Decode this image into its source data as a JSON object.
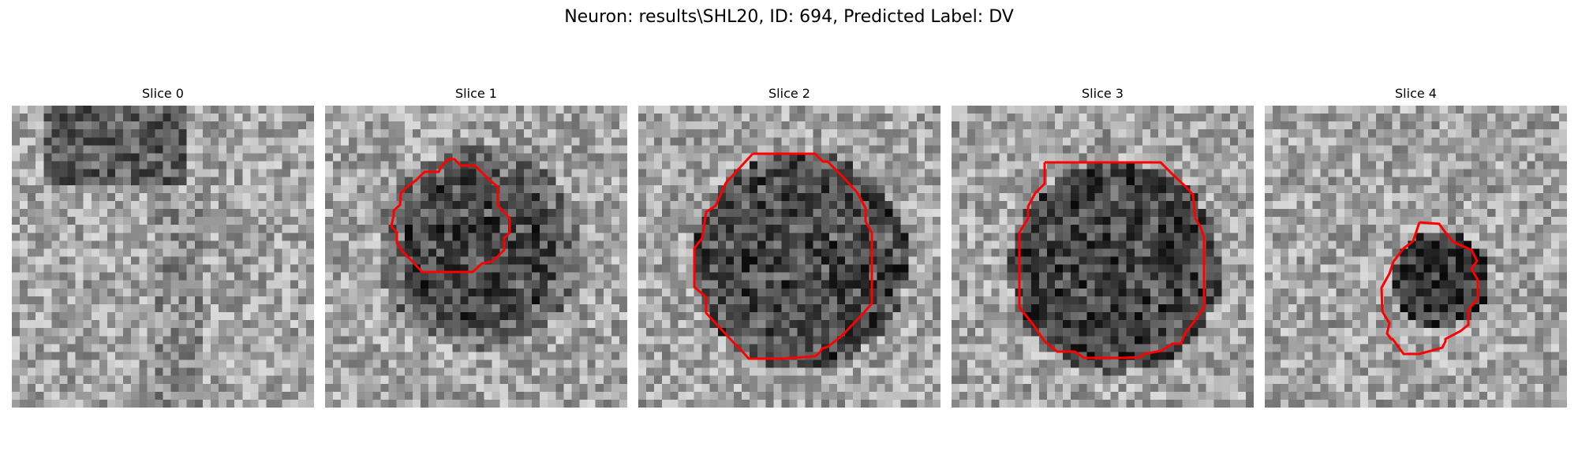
{
  "figure": {
    "title": "Neuron: results\\SHL20, ID: 694, Predicted Label: DV"
  },
  "colors": {
    "contour": "#ff0000",
    "background": "#ffffff"
  },
  "slices": [
    {
      "title": "Slice 0",
      "has_contour": false
    },
    {
      "title": "Slice 1",
      "has_contour": true
    },
    {
      "title": "Slice 2",
      "has_contour": true
    },
    {
      "title": "Slice 3",
      "has_contour": true
    },
    {
      "title": "Slice 4",
      "has_contour": true
    }
  ]
}
